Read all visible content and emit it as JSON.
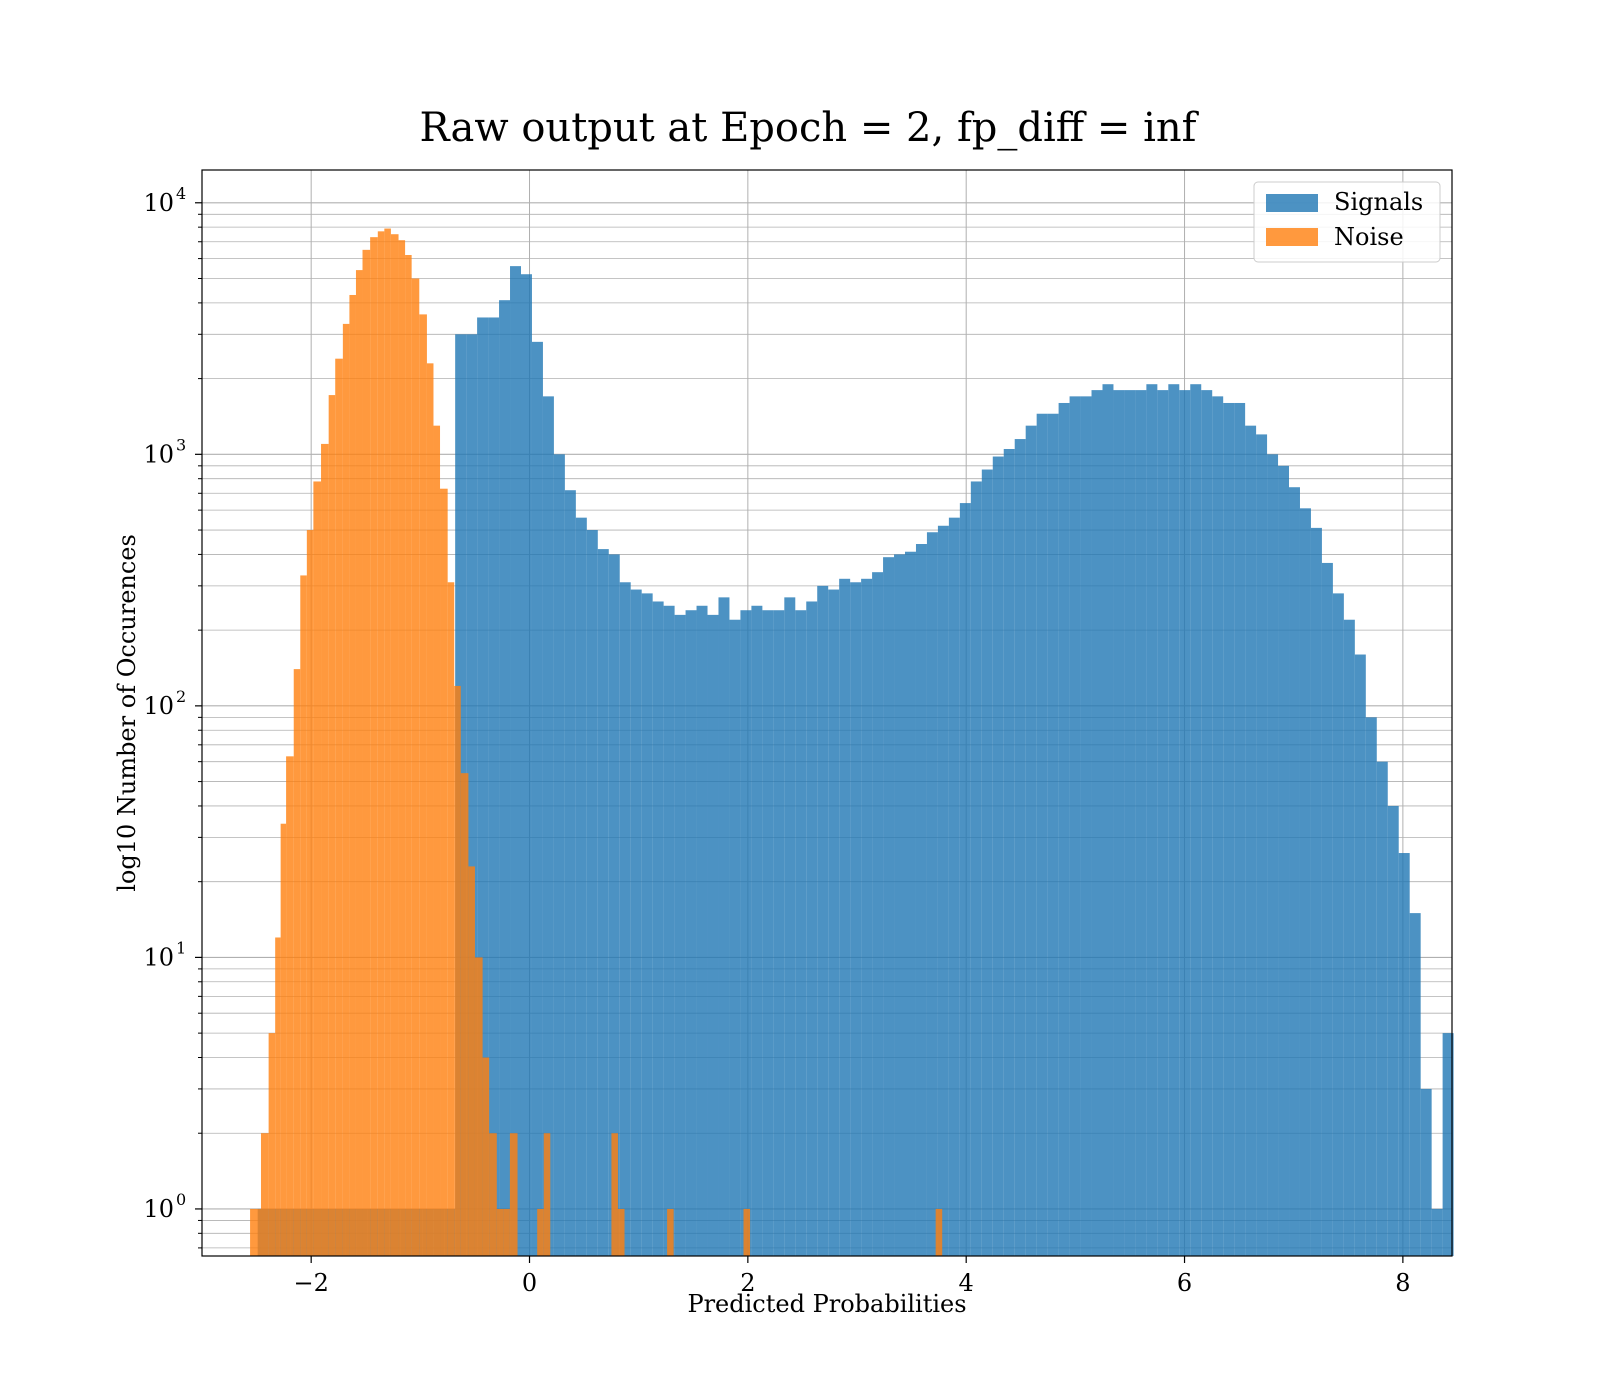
{
  "chart_data": {
    "type": "histogram",
    "title": "Raw output at Epoch = 2, fp_diff = inf",
    "xlabel": "Predicted Probabilities",
    "ylabel": "log10 Number of Occurences",
    "xlim": [
      -3.0,
      8.45
    ],
    "ylim": [
      0.65,
      13500
    ],
    "yscale": "log",
    "grid": true,
    "legend_position": "top-right",
    "x_ticks": [
      {
        "value": -2,
        "label": "−2"
      },
      {
        "value": 0,
        "label": "0"
      },
      {
        "value": 2,
        "label": "2"
      },
      {
        "value": 4,
        "label": "4"
      },
      {
        "value": 6,
        "label": "6"
      },
      {
        "value": 8,
        "label": "8"
      }
    ],
    "y_ticks": [
      {
        "value": 1,
        "base": "10",
        "exp": "0"
      },
      {
        "value": 10,
        "base": "10",
        "exp": "1"
      },
      {
        "value": 100,
        "base": "10",
        "exp": "2"
      },
      {
        "value": 1000,
        "base": "10",
        "exp": "3"
      },
      {
        "value": 10000,
        "base": "10",
        "exp": "4"
      }
    ],
    "series": [
      {
        "name": "Signals",
        "color": "#1f77b4",
        "alpha": 0.8,
        "bin_start": -2.49,
        "bin_width": 0.1005,
        "values": [
          1,
          1,
          1,
          1,
          1,
          1,
          1,
          1,
          1,
          1,
          1,
          1,
          1,
          1,
          1,
          1,
          1,
          1,
          3000,
          3000,
          3500,
          3500,
          4100,
          5600,
          5200,
          2800,
          1700,
          1000,
          720,
          560,
          500,
          420,
          400,
          310,
          290,
          280,
          260,
          250,
          230,
          240,
          250,
          230,
          270,
          220,
          240,
          250,
          240,
          240,
          270,
          240,
          260,
          300,
          290,
          320,
          310,
          320,
          340,
          390,
          400,
          410,
          440,
          490,
          520,
          560,
          640,
          780,
          870,
          980,
          1050,
          1150,
          1300,
          1450,
          1450,
          1600,
          1700,
          1700,
          1800,
          1900,
          1800,
          1800,
          1800,
          1900,
          1800,
          1900,
          1800,
          1900,
          1800,
          1700,
          1600,
          1600,
          1300,
          1200,
          1000,
          900,
          740,
          610,
          510,
          370,
          280,
          220,
          160,
          90,
          60,
          40,
          26,
          15,
          3,
          1,
          5
        ]
      },
      {
        "name": "Noise",
        "color": "#ff7f0e",
        "alpha": 0.8,
        "bins": [
          [
            -2.5597,
            -2.4597,
            1
          ],
          [
            -2.4597,
            -2.3897,
            2
          ],
          [
            -2.3897,
            -2.3297,
            5
          ],
          [
            -2.3297,
            -2.2797,
            12
          ],
          [
            -2.2797,
            -2.2297,
            34
          ],
          [
            -2.2297,
            -2.1597,
            63
          ],
          [
            -2.1597,
            -2.0997,
            140
          ],
          [
            -2.0997,
            -2.0397,
            330
          ],
          [
            -2.0397,
            -1.9797,
            500
          ],
          [
            -1.9797,
            -1.9097,
            780
          ],
          [
            -1.9097,
            -1.8397,
            1100
          ],
          [
            -1.8397,
            -1.7797,
            1720
          ],
          [
            -1.7797,
            -1.7097,
            2400
          ],
          [
            -1.7097,
            -1.6497,
            3300
          ],
          [
            -1.6497,
            -1.5897,
            4300
          ],
          [
            -1.5897,
            -1.5297,
            5400
          ],
          [
            -1.5297,
            -1.4597,
            6500
          ],
          [
            -1.4597,
            -1.3897,
            7300
          ],
          [
            -1.3897,
            -1.3297,
            7700
          ],
          [
            -1.3297,
            -1.2697,
            7900
          ],
          [
            -1.2697,
            -1.1997,
            7500
          ],
          [
            -1.1997,
            -1.1397,
            7100
          ],
          [
            -1.1397,
            -1.0797,
            6200
          ],
          [
            -1.0797,
            -1.0097,
            5000
          ],
          [
            -1.0097,
            -0.9397,
            3600
          ],
          [
            -0.9397,
            -0.8797,
            2300
          ],
          [
            -0.8797,
            -0.8197,
            1300
          ],
          [
            -0.8197,
            -0.7497,
            730
          ],
          [
            -0.7497,
            -0.6897,
            310
          ],
          [
            -0.6897,
            -0.6297,
            120
          ],
          [
            -0.6297,
            -0.5597,
            54
          ],
          [
            -0.5597,
            -0.4997,
            23
          ],
          [
            -0.4997,
            -0.4297,
            10
          ],
          [
            -0.4297,
            -0.3697,
            4
          ],
          [
            -0.3697,
            -0.2997,
            2
          ],
          [
            -0.2997,
            -0.2397,
            1
          ],
          [
            -0.2397,
            -0.1797,
            1
          ],
          [
            -0.1797,
            -0.1097,
            2
          ],
          [
            0.0703,
            0.1303,
            1
          ],
          [
            0.1303,
            0.1903,
            2
          ],
          [
            0.7503,
            0.8103,
            2
          ],
          [
            0.8103,
            0.8703,
            1
          ],
          [
            1.2603,
            1.3203,
            1
          ],
          [
            1.9603,
            2.0203,
            1
          ],
          [
            3.7203,
            3.7803,
            1
          ]
        ]
      }
    ]
  }
}
